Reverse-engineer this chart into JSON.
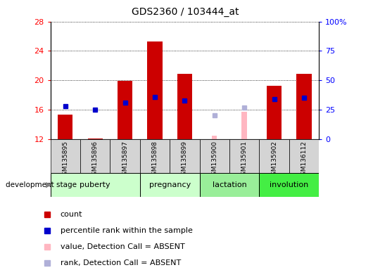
{
  "title": "GDS2360 / 103444_at",
  "samples": [
    "GSM135895",
    "GSM135896",
    "GSM135897",
    "GSM135898",
    "GSM135899",
    "GSM135900",
    "GSM135901",
    "GSM135902",
    "GSM136112"
  ],
  "count_top": [
    15.3,
    12.1,
    19.9,
    25.3,
    20.9,
    null,
    null,
    19.3,
    20.9
  ],
  "count_base": 12.0,
  "rank_pct": [
    28,
    25,
    31,
    36,
    33,
    null,
    null,
    34,
    35
  ],
  "absent_count_top": [
    null,
    null,
    null,
    null,
    null,
    12.5,
    15.7,
    null,
    null
  ],
  "absent_rank_pct": [
    null,
    null,
    null,
    null,
    null,
    20,
    27,
    null,
    null
  ],
  "ylim_left": [
    12,
    28
  ],
  "ylim_right": [
    0,
    100
  ],
  "yticks_left": [
    12,
    16,
    20,
    24,
    28
  ],
  "yticks_right": [
    0,
    25,
    50,
    75,
    100
  ],
  "ytick_labels_right": [
    "0",
    "25",
    "50",
    "75",
    "100%"
  ],
  "stages": [
    {
      "label": "puberty",
      "start": 0,
      "end": 2,
      "color": "#ccffcc"
    },
    {
      "label": "pregnancy",
      "start": 3,
      "end": 4,
      "color": "#ccffcc"
    },
    {
      "label": "lactation",
      "start": 5,
      "end": 6,
      "color": "#99ee99"
    },
    {
      "label": "involution",
      "start": 7,
      "end": 8,
      "color": "#44ee44"
    }
  ],
  "bar_color": "#cc0000",
  "rank_color": "#0000cc",
  "absent_bar_color": "#ffb6c1",
  "absent_rank_color": "#b0b0d8",
  "legend_items": [
    {
      "label": "count",
      "color": "#cc0000"
    },
    {
      "label": "percentile rank within the sample",
      "color": "#0000cc"
    },
    {
      "label": "value, Detection Call = ABSENT",
      "color": "#ffb6c1"
    },
    {
      "label": "rank, Detection Call = ABSENT",
      "color": "#b0b0d8"
    }
  ]
}
